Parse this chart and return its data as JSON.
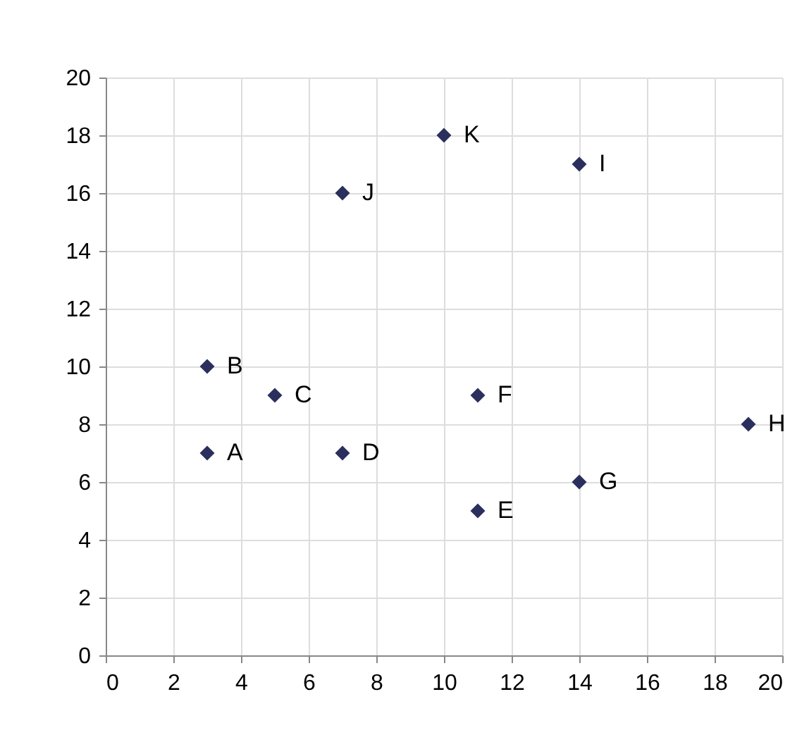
{
  "chart_data": {
    "type": "scatter",
    "x": [
      3,
      3,
      5,
      7,
      11,
      11,
      14,
      19,
      14,
      7,
      10
    ],
    "values": [
      7,
      10,
      9,
      7,
      5,
      9,
      6,
      8,
      17,
      16,
      18
    ],
    "color": "#2b2f5e",
    "marker": "diamond",
    "grid": true,
    "xlim": [
      0,
      20
    ],
    "xticks": [
      0,
      2,
      4,
      6,
      8,
      10,
      12,
      14,
      16,
      18,
      20
    ],
    "ylim": [
      0,
      20
    ],
    "yticks": [
      0,
      2,
      4,
      6,
      8,
      10,
      12,
      14,
      16,
      18,
      20
    ],
    "annotations": [
      {
        "text": "A",
        "x": 3,
        "y": 7
      },
      {
        "text": "B",
        "x": 3,
        "y": 10
      },
      {
        "text": "C",
        "x": 5,
        "y": 9
      },
      {
        "text": "D",
        "x": 7,
        "y": 7
      },
      {
        "text": "E",
        "x": 11,
        "y": 5
      },
      {
        "text": "F",
        "x": 11,
        "y": 9
      },
      {
        "text": "G",
        "x": 14,
        "y": 6
      },
      {
        "text": "H",
        "x": 19,
        "y": 8
      },
      {
        "text": "I",
        "x": 14,
        "y": 17
      },
      {
        "text": "J",
        "x": 7,
        "y": 16
      },
      {
        "text": "K",
        "x": 10,
        "y": 18
      }
    ]
  }
}
